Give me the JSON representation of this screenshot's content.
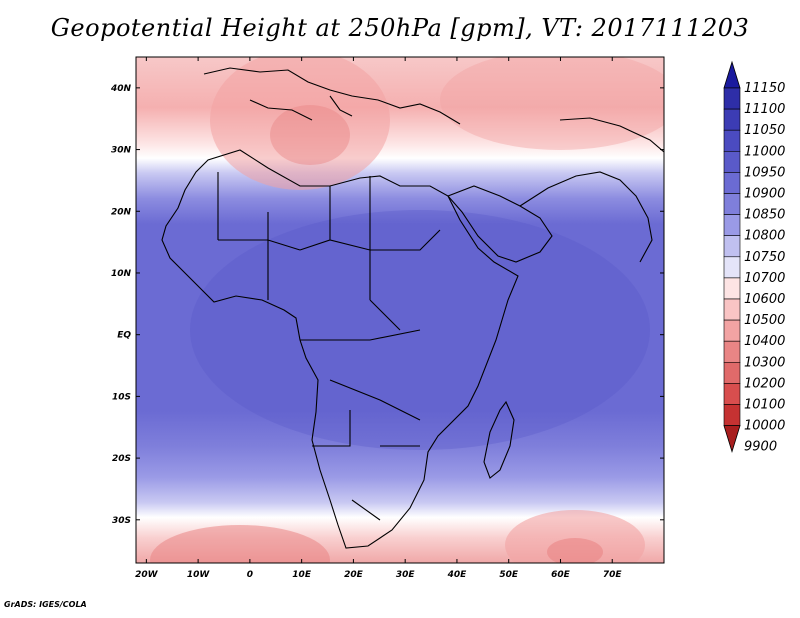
{
  "title": "Geopotential Height at 250hPa [gpm], VT: 2017111203",
  "credit": "GrADS: IGES/COLA",
  "map": {
    "projection": "latlon",
    "lon_range": [
      -22,
      80
    ],
    "lat_range": [
      -37,
      45
    ],
    "lon_ticks": [
      "20W",
      "10W",
      "0",
      "10E",
      "20E",
      "30E",
      "40E",
      "50E",
      "60E",
      "70E"
    ],
    "lat_ticks": [
      "40N",
      "30N",
      "20N",
      "10N",
      "EQ",
      "10S",
      "20S",
      "30S"
    ]
  },
  "colorbar": {
    "levels": [
      "11150",
      "11100",
      "11050",
      "11000",
      "10950",
      "10900",
      "10850",
      "10800",
      "10750",
      "10700",
      "10600",
      "10500",
      "10400",
      "10300",
      "10200",
      "10100",
      "10000",
      "9900"
    ],
    "colors": [
      "#1a1a9e",
      "#2e2ea8",
      "#3c3cb4",
      "#4b4bc0",
      "#5a5ac9",
      "#6b6bd3",
      "#7f7fdb",
      "#9a9ae6",
      "#c0c0f0",
      "#e4e4f9",
      "#fde4e4",
      "#f9c4c4",
      "#f2a3a3",
      "#e98585",
      "#e06a6a",
      "#d84e4e",
      "#c53232",
      "#a81e1e"
    ]
  }
}
